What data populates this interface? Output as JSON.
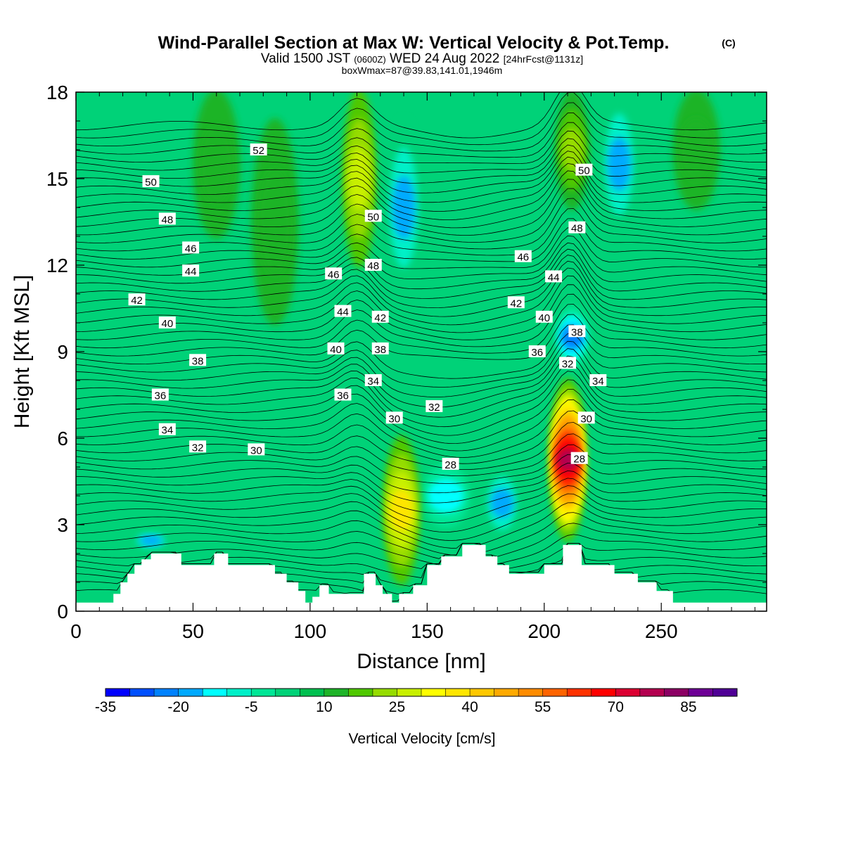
{
  "title": {
    "main": "Wind-Parallel Section at Max W: Vertical Velocity & Pot.Temp.",
    "copyright": "(C)",
    "valid_prefix": "Valid 1500 JST",
    "valid_utc": "(0600Z)",
    "valid_date": "WED 24 Aug 2022",
    "forecast": "[24hrFcst@1131z]",
    "box": "boxWmax=87@39.83,141.01,1946m"
  },
  "chart_data": {
    "type": "heatmap",
    "xlabel": "Distance [nm]",
    "ylabel": "Height [Kft MSL]",
    "xlim": [
      0,
      295
    ],
    "ylim": [
      0,
      18
    ],
    "x_ticks": [
      0,
      50,
      100,
      150,
      200,
      250
    ],
    "y_ticks": [
      0,
      3,
      6,
      9,
      12,
      15,
      18
    ],
    "colorbar": {
      "label": "Vertical Velocity [cm/s]",
      "min": -35,
      "max": 95,
      "step": 5,
      "tick_labels": [
        -35,
        -20,
        -5,
        10,
        25,
        40,
        55,
        70,
        85
      ],
      "colors": [
        "#0000ff",
        "#0050ff",
        "#0082ff",
        "#00aaff",
        "#00ffff",
        "#00f0c8",
        "#00e696",
        "#00d278",
        "#00c050",
        "#1eb428",
        "#50c800",
        "#96dc00",
        "#c8f000",
        "#ffff00",
        "#ffe600",
        "#ffc800",
        "#ffaa00",
        "#ff8c00",
        "#ff6400",
        "#ff3200",
        "#ff0000",
        "#dc0032",
        "#b40050",
        "#8c0064",
        "#6e0096",
        "#500096"
      ]
    },
    "vertical_velocity_features": [
      {
        "x": 121,
        "y_bottom": 12,
        "y_top": 18,
        "value": 25
      },
      {
        "x": 139,
        "y_bottom": 1,
        "y_top": 6,
        "value": 35
      },
      {
        "x": 210,
        "y_bottom": 2.5,
        "y_top": 8,
        "value": 75
      },
      {
        "x": 212,
        "y_bottom": 14,
        "y_top": 18,
        "value": 20
      },
      {
        "x": 140,
        "y_bottom": 11,
        "y_top": 17,
        "value": -20
      },
      {
        "x": 232,
        "y_bottom": 13,
        "y_top": 18,
        "value": -20
      },
      {
        "x": 182,
        "y_bottom": 2.5,
        "y_top": 5,
        "value": -20
      },
      {
        "x": 158,
        "y_bottom": 3,
        "y_top": 5,
        "value": -15
      },
      {
        "x": 212,
        "y_bottom": 8.5,
        "y_top": 10.5,
        "value": -25
      },
      {
        "x": 32,
        "y_bottom": 2.2,
        "y_top": 2.7,
        "value": -20
      },
      {
        "x": 85,
        "y_bottom": 10,
        "y_top": 17,
        "value": 12
      },
      {
        "x": 60,
        "y_bottom": 13,
        "y_top": 18,
        "value": 10
      },
      {
        "x": 265,
        "y_bottom": 14,
        "y_top": 18,
        "value": 12
      }
    ],
    "terrain_profile": {
      "x": [
        0,
        16,
        19,
        22,
        25,
        28,
        32,
        45,
        59,
        65,
        85,
        90,
        95,
        98,
        101,
        104,
        108,
        113,
        123,
        128,
        131,
        135,
        138,
        144,
        150,
        156,
        165,
        175,
        180,
        185,
        200,
        208,
        216,
        230,
        240,
        248,
        255,
        260,
        295
      ],
      "y": [
        0.3,
        0.6,
        1.0,
        1.3,
        1.6,
        1.8,
        2.0,
        1.6,
        2.0,
        1.6,
        1.3,
        1.0,
        0.7,
        0.3,
        0.5,
        0.9,
        0.6,
        0.6,
        1.3,
        0.9,
        0.6,
        0.3,
        0.6,
        0.9,
        1.6,
        1.9,
        2.3,
        1.9,
        1.6,
        1.3,
        1.6,
        2.3,
        1.6,
        1.3,
        1.0,
        0.7,
        0.3,
        0.3,
        0.3
      ]
    },
    "theta_contours": {
      "label_values": [
        28,
        30,
        32,
        34,
        36,
        38,
        40,
        42,
        44,
        46,
        48,
        50,
        52
      ],
      "labels": [
        {
          "v": 52,
          "x": 78,
          "y": 16.0
        },
        {
          "v": 50,
          "x": 32,
          "y": 14.9
        },
        {
          "v": 48,
          "x": 39,
          "y": 13.6
        },
        {
          "v": 46,
          "x": 49,
          "y": 12.6
        },
        {
          "v": 44,
          "x": 49,
          "y": 11.8
        },
        {
          "v": 42,
          "x": 26,
          "y": 10.8
        },
        {
          "v": 40,
          "x": 39,
          "y": 10.0
        },
        {
          "v": 38,
          "x": 52,
          "y": 8.7
        },
        {
          "v": 36,
          "x": 36,
          "y": 7.5
        },
        {
          "v": 34,
          "x": 39,
          "y": 6.3
        },
        {
          "v": 32,
          "x": 52,
          "y": 5.7
        },
        {
          "v": 30,
          "x": 77,
          "y": 5.6
        },
        {
          "v": 46,
          "x": 110,
          "y": 11.7
        },
        {
          "v": 44,
          "x": 114,
          "y": 10.4
        },
        {
          "v": 40,
          "x": 111,
          "y": 9.1
        },
        {
          "v": 36,
          "x": 114,
          "y": 7.5
        },
        {
          "v": 50,
          "x": 127,
          "y": 13.7
        },
        {
          "v": 48,
          "x": 127,
          "y": 12.0
        },
        {
          "v": 42,
          "x": 130,
          "y": 10.2
        },
        {
          "v": 38,
          "x": 130,
          "y": 9.1
        },
        {
          "v": 34,
          "x": 127,
          "y": 8.0
        },
        {
          "v": 30,
          "x": 136,
          "y": 6.7
        },
        {
          "v": 32,
          "x": 153,
          "y": 7.1
        },
        {
          "v": 28,
          "x": 160,
          "y": 5.1
        },
        {
          "v": 46,
          "x": 191,
          "y": 12.3
        },
        {
          "v": 42,
          "x": 188,
          "y": 10.7
        },
        {
          "v": 44,
          "x": 204,
          "y": 11.6
        },
        {
          "v": 40,
          "x": 200,
          "y": 10.2
        },
        {
          "v": 36,
          "x": 197,
          "y": 9.0
        },
        {
          "v": 32,
          "x": 210,
          "y": 8.6
        },
        {
          "v": 50,
          "x": 217,
          "y": 15.3
        },
        {
          "v": 48,
          "x": 214,
          "y": 13.3
        },
        {
          "v": 38,
          "x": 214,
          "y": 9.7
        },
        {
          "v": 34,
          "x": 223,
          "y": 8.0
        },
        {
          "v": 30,
          "x": 218,
          "y": 6.7
        },
        {
          "v": 28,
          "x": 215,
          "y": 5.3
        }
      ]
    }
  }
}
